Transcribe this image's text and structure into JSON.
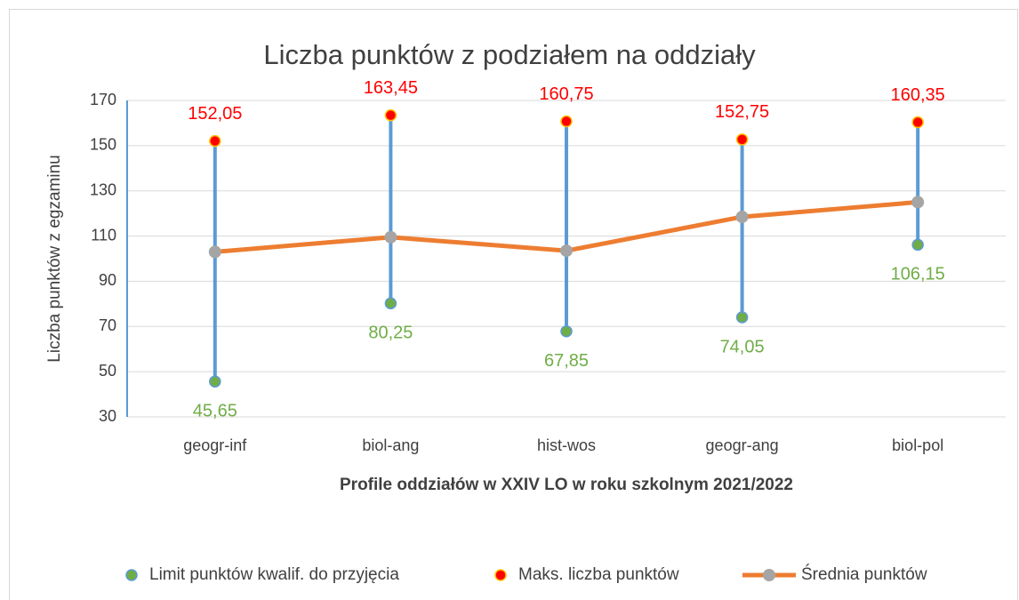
{
  "chart_data": {
    "type": "high-low-line",
    "title": "Liczba punktów z podziałem na oddziały",
    "x_label": "Profile oddziałów w XXIV LO w roku szkolnym 2021/2022",
    "y_label": "Liczba punktów z egzaminu",
    "categories": [
      "geogr-inf",
      "biol-ang",
      "hist-wos",
      "geogr-ang",
      "biol-pol"
    ],
    "series": [
      {
        "name": "Limit punktów kwalif. do przyjęcia",
        "color": "#70ad47",
        "edge_color": "#5b9bd5",
        "values": [
          45.65,
          80.25,
          67.85,
          74.05,
          106.15
        ],
        "value_labels": [
          "45,65",
          "80,25",
          "67,85",
          "74,05",
          "106,15"
        ]
      },
      {
        "name": "Maks. liczba punktów",
        "color": "#ff0000",
        "edge_color": "#ffc000",
        "values": [
          152.05,
          163.45,
          160.75,
          152.75,
          160.35
        ],
        "value_labels": [
          "152,05",
          "163,45",
          "160,75",
          "152,75",
          "160,35"
        ]
      },
      {
        "name": "Średnia punktów",
        "color": "#a5a5a5",
        "line_color": "#ed7d31",
        "values": [
          103,
          109.5,
          103.5,
          118.5,
          125
        ]
      }
    ],
    "high_low_color": "#5b9bd5",
    "ylim": [
      30,
      170
    ],
    "yticks": [
      30,
      50,
      70,
      90,
      110,
      130,
      150,
      170
    ],
    "grid": true,
    "legend": "bottom"
  }
}
